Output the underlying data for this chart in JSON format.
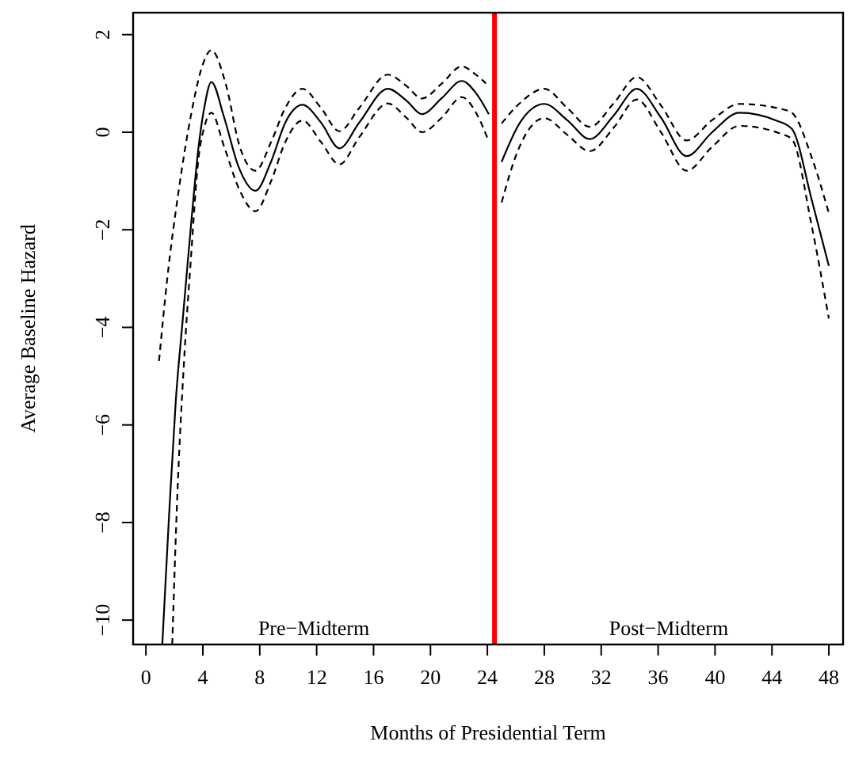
{
  "chart_data": {
    "type": "line",
    "xlabel": "Months of Presidential Term",
    "ylabel": "Average Baseline Hazard",
    "xlim": [
      -0.9,
      49.0
    ],
    "ylim": [
      -10.5,
      2.45
    ],
    "xticks": [
      0,
      4,
      8,
      12,
      16,
      20,
      24,
      28,
      32,
      36,
      40,
      44,
      48
    ],
    "yticks": [
      {
        "value": -10,
        "label": "−10"
      },
      {
        "value": -8,
        "label": "−8"
      },
      {
        "value": -6,
        "label": "−6"
      },
      {
        "value": -4,
        "label": "−4"
      },
      {
        "value": -2,
        "label": "−2"
      },
      0,
      2
    ],
    "grid": false,
    "series": [
      {
        "color": "#000000",
        "line_style": "solid",
        "x": [
          1.15,
          1.6,
          2.1,
          2.6,
          3.2,
          3.7,
          4.1,
          4.6,
          5.5,
          6.5,
          7.7,
          8.8,
          9.8,
          11.0,
          12.3,
          13.6,
          15.0,
          17.0,
          18.3,
          19.4,
          20.8,
          22.2,
          23.2,
          24.1
        ],
        "values": [
          -10.5,
          -8,
          -5.5,
          -3.8,
          -1.8,
          -0.3,
          0.5,
          1.03,
          0.3,
          -0.7,
          -1.2,
          -0.6,
          0.2,
          0.56,
          0.2,
          -0.33,
          0.2,
          0.89,
          0.65,
          0.37,
          0.7,
          1.05,
          0.8,
          0.37
        ]
      },
      {
        "color": "#000000",
        "line_style": "dashed",
        "x": [
          0.92,
          1.5,
          2.3,
          3.2,
          3.9,
          4.6,
          5.6,
          6.6,
          7.7,
          8.8,
          9.8,
          11.0,
          12.3,
          13.6,
          15.0,
          17.0,
          18.3,
          19.4,
          20.8,
          22.2,
          23.1,
          23.9
        ],
        "values": [
          -4.69,
          -3,
          -1.2,
          0.4,
          1.3,
          1.68,
          1.0,
          -0.3,
          -0.79,
          -0.2,
          0.5,
          0.89,
          0.5,
          0.02,
          0.5,
          1.18,
          0.95,
          0.69,
          1.0,
          1.35,
          1.2,
          1.0
        ]
      },
      {
        "color": "#000000",
        "line_style": "dashed",
        "x": [
          1.85,
          2.2,
          2.67,
          3.14,
          3.7,
          4.1,
          4.6,
          5.5,
          6.6,
          7.7,
          8.8,
          9.8,
          11.0,
          12.3,
          13.6,
          15.0,
          17.0,
          18.3,
          19.4,
          20.8,
          22.2,
          23.2,
          24.1
        ],
        "values": [
          -10.5,
          -7.5,
          -4.74,
          -2.68,
          -0.52,
          0.1,
          0.4,
          -0.3,
          -1.2,
          -1.62,
          -1.0,
          -0.2,
          0.24,
          -0.2,
          -0.66,
          -0.1,
          0.59,
          0.3,
          0.0,
          0.3,
          0.72,
          0.4,
          -0.19
        ]
      },
      {
        "color": "#000000",
        "line_style": "solid",
        "x": [
          25.0,
          26.3,
          28.0,
          29.6,
          31.2,
          32.9,
          34.5,
          36.2,
          38.0,
          39.8,
          41.7,
          44.3,
          45.4,
          46.8,
          48.0
        ],
        "values": [
          -0.61,
          0.2,
          0.58,
          0.25,
          -0.14,
          0.35,
          0.89,
          0.3,
          -0.49,
          0.0,
          0.4,
          0.24,
          0.07,
          -1.39,
          -2.74
        ]
      },
      {
        "color": "#000000",
        "line_style": "dashed",
        "x": [
          25.0,
          26.3,
          28.0,
          29.6,
          31.2,
          32.9,
          34.5,
          36.2,
          38.0,
          39.8,
          41.7,
          44.6,
          45.4,
          46.8,
          48.0
        ],
        "values": [
          0.18,
          0.6,
          0.89,
          0.5,
          0.11,
          0.6,
          1.13,
          0.55,
          -0.17,
          0.25,
          0.58,
          0.48,
          0.4,
          -0.52,
          -1.66
        ]
      },
      {
        "color": "#000000",
        "line_style": "dashed",
        "x": [
          25.0,
          26.1,
          28.0,
          29.6,
          31.2,
          32.9,
          34.5,
          36.2,
          38.0,
          39.8,
          41.7,
          44.6,
          45.4,
          46.8,
          48.0
        ],
        "values": [
          -1.44,
          -0.41,
          0.29,
          -0.05,
          -0.39,
          0.1,
          0.67,
          0.0,
          -0.79,
          -0.3,
          0.13,
          -0.03,
          -0.14,
          -1.93,
          -3.82
        ]
      }
    ],
    "ref_lines": [
      {
        "axis": "x",
        "value": 24.5,
        "color": "#ff0000",
        "line_style": "solid"
      }
    ],
    "annotations": [
      "Pre−Midterm",
      "Post−Midterm"
    ]
  }
}
